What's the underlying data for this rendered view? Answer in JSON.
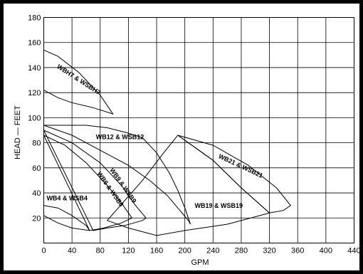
{
  "chart_data": {
    "type": "line",
    "title": "",
    "xlabel": "GPM",
    "ylabel": "HEAD — FEET",
    "xlim": [
      0,
      440
    ],
    "ylim": [
      0,
      180
    ],
    "x_ticks": [
      0,
      40,
      80,
      120,
      160,
      200,
      240,
      280,
      320,
      360,
      400,
      440
    ],
    "y_ticks": [
      20,
      40,
      60,
      80,
      100,
      120,
      140,
      160,
      180
    ],
    "grid": true,
    "legend": "none",
    "series": [
      {
        "name": "WBH7 & WSBH7",
        "label": "WBH7 & WSBH7",
        "boundary": [
          [
            0,
            154
          ],
          [
            20,
            149
          ],
          [
            50,
            136
          ],
          [
            80,
            118
          ],
          [
            98,
            103
          ],
          [
            70,
            108
          ],
          [
            40,
            112
          ],
          [
            20,
            116
          ],
          [
            0,
            122
          ]
        ]
      },
      {
        "name": "WB12 & WSB12",
        "label": "WB12 & WSB12",
        "boundary": [
          [
            0,
            94
          ],
          [
            40,
            86
          ],
          [
            80,
            74
          ],
          [
            120,
            62
          ],
          [
            150,
            50
          ],
          [
            175,
            38
          ],
          [
            190,
            28
          ],
          [
            205,
            18
          ],
          [
            208,
            15
          ],
          [
            200,
            28
          ],
          [
            190,
            42
          ],
          [
            178,
            56
          ],
          [
            160,
            72
          ],
          [
            140,
            84
          ],
          [
            118,
            88
          ],
          [
            90,
            92
          ],
          [
            60,
            94
          ],
          [
            30,
            94
          ]
        ]
      },
      {
        "name": "WB9 & WSB9",
        "label": "WB9 & WSB9",
        "boundary": [
          [
            0,
            90
          ],
          [
            40,
            80
          ],
          [
            80,
            64
          ],
          [
            110,
            46
          ],
          [
            130,
            30
          ],
          [
            145,
            20
          ],
          [
            140,
            18
          ],
          [
            115,
            14
          ],
          [
            90,
            12
          ],
          [
            70,
            10
          ]
        ]
      },
      {
        "name": "WB6 & WSB6",
        "label": "WB6 & WSB6",
        "boundary": [
          [
            0,
            86
          ],
          [
            30,
            78
          ],
          [
            60,
            64
          ],
          [
            90,
            46
          ],
          [
            110,
            32
          ],
          [
            125,
            20
          ],
          [
            110,
            16
          ],
          [
            85,
            12
          ],
          [
            65,
            10
          ]
        ]
      },
      {
        "name": "WB4 & WSB4",
        "label": "WB4 & WSB4",
        "boundary": [
          [
            0,
            30
          ],
          [
            20,
            28
          ],
          [
            40,
            22
          ],
          [
            60,
            14
          ],
          [
            65,
            10
          ],
          [
            40,
            12
          ],
          [
            20,
            16
          ],
          [
            0,
            22
          ]
        ]
      },
      {
        "name": "WB21 & WSB21",
        "label": "WB21 & WSB21",
        "boundary": [
          [
            190,
            86
          ],
          [
            240,
            78
          ],
          [
            290,
            62
          ],
          [
            330,
            44
          ],
          [
            350,
            30
          ],
          [
            340,
            26
          ],
          [
            320,
            24
          ],
          [
            280,
            44
          ],
          [
            240,
            66
          ]
        ]
      },
      {
        "name": "WB19 & WSB19",
        "label": "WB19 & WSB19",
        "boundary": [
          [
            190,
            86
          ],
          [
            240,
            66
          ],
          [
            280,
            44
          ],
          [
            320,
            24
          ],
          [
            260,
            15
          ],
          [
            200,
            10
          ],
          [
            160,
            6
          ],
          [
            120,
            12
          ],
          [
            90,
            18
          ],
          [
            140,
            50
          ],
          [
            170,
            72
          ]
        ]
      }
    ]
  },
  "labels": {
    "x_ticks": [
      "0",
      "40",
      "80",
      "120",
      "160",
      "200",
      "240",
      "280",
      "320",
      "360",
      "400",
      "440"
    ],
    "y_ticks": [
      "20",
      "40",
      "60",
      "80",
      "100",
      "120",
      "140",
      "160",
      "180"
    ],
    "xlabel": "GPM",
    "ylabel": "HEAD — FEET"
  }
}
